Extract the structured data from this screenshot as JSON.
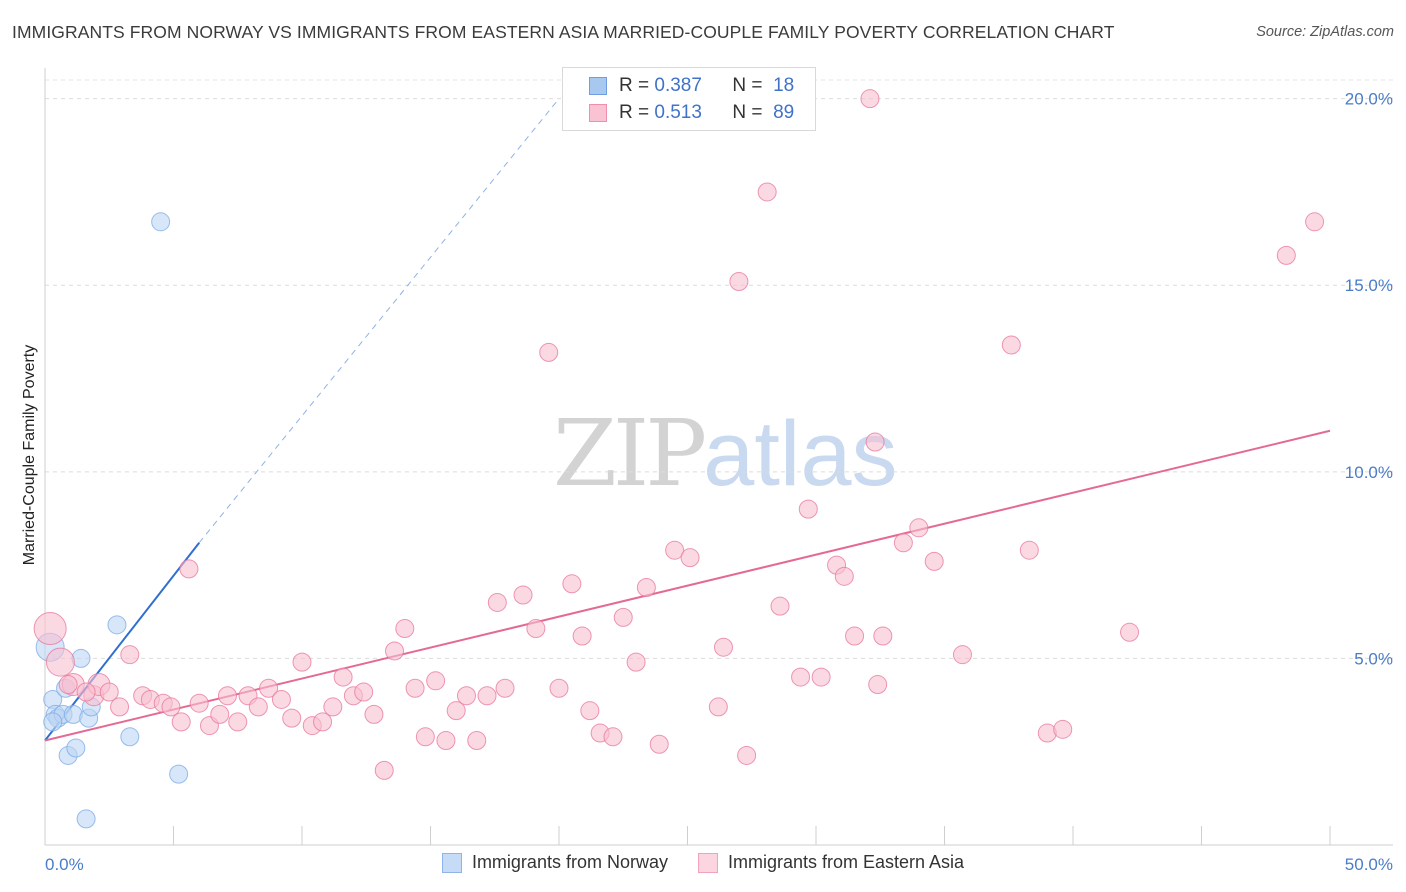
{
  "header": {
    "title": "IMMIGRANTS FROM NORWAY VS IMMIGRANTS FROM EASTERN ASIA MARRIED-COUPLE FAMILY POVERTY CORRELATION CHART",
    "source": "Source: ZipAtlas.com"
  },
  "watermark": {
    "zip": "ZIP",
    "atlas": "atlas"
  },
  "legend_top": [
    {
      "r_label": "R =",
      "r_value": "0.387",
      "n_label": "N =",
      "n_value": "18",
      "color": "#a9c8f0",
      "border": "#6f9fe0"
    },
    {
      "r_label": "R =",
      "r_value": "0.513",
      "n_label": "N =",
      "n_value": "89",
      "color": "#f9c3d3",
      "border": "#ee8fac"
    }
  ],
  "legend_bottom": [
    {
      "label": "Immigrants from Norway",
      "color": "#c6dbf5",
      "border": "#8fb5e6"
    },
    {
      "label": "Immigrants from Eastern Asia",
      "color": "#fbd5e0",
      "border": "#f0a3ba"
    }
  ],
  "chart_data": {
    "type": "scatter",
    "title": "IMMIGRANTS FROM NORWAY VS IMMIGRANTS FROM EASTERN ASIA MARRIED-COUPLE FAMILY POVERTY CORRELATION CHART",
    "xlabel": "",
    "ylabel": "Married-Couple Family Poverty",
    "xlim": [
      0,
      50
    ],
    "ylim": [
      0,
      20.5
    ],
    "x_tick_labels": [
      "0.0%",
      "50.0%"
    ],
    "y_ticks": [
      5,
      10,
      15,
      20
    ],
    "y_tick_labels": [
      "5.0%",
      "10.0%",
      "15.0%",
      "20.0%"
    ],
    "grid": true,
    "legend_position": "top-center",
    "series": [
      {
        "name": "Immigrants from Norway",
        "color": "#7aaae6",
        "fill": "#bcd5f3",
        "R": 0.387,
        "N": 18,
        "trend": {
          "x": [
            0,
            6
          ],
          "y": [
            2.8,
            8.1
          ],
          "extended_to": [
            20,
            20.0
          ]
        },
        "points": [
          [
            0.2,
            5.3,
            14
          ],
          [
            0.3,
            3.9,
            9
          ],
          [
            0.4,
            3.5,
            9
          ],
          [
            0.5,
            3.4,
            9
          ],
          [
            0.7,
            3.5,
            9
          ],
          [
            0.8,
            4.2,
            9
          ],
          [
            0.9,
            2.4,
            9
          ],
          [
            1.1,
            3.5,
            9
          ],
          [
            1.2,
            2.6,
            9
          ],
          [
            1.4,
            5.0,
            9
          ],
          [
            1.6,
            0.7,
            9
          ],
          [
            1.7,
            3.4,
            9
          ],
          [
            1.8,
            3.7,
            9
          ],
          [
            2.8,
            5.9,
            9
          ],
          [
            3.3,
            2.9,
            9
          ],
          [
            4.5,
            16.7,
            9
          ],
          [
            5.2,
            1.9,
            9
          ],
          [
            0.3,
            3.3,
            9
          ]
        ]
      },
      {
        "name": "Immigrants from Eastern Asia",
        "color": "#e8759b",
        "fill": "#f8c0d1",
        "R": 0.513,
        "N": 89,
        "trend": {
          "x": [
            0,
            50
          ],
          "y": [
            2.8,
            11.1
          ]
        },
        "points": [
          [
            0.2,
            5.8,
            16
          ],
          [
            0.6,
            4.9,
            14
          ],
          [
            1.1,
            4.3,
            11
          ],
          [
            1.9,
            4.0,
            10
          ],
          [
            2.1,
            4.3,
            11
          ],
          [
            2.5,
            4.1,
            9
          ],
          [
            2.9,
            3.7,
            9
          ],
          [
            3.3,
            5.1,
            9
          ],
          [
            3.8,
            4.0,
            9
          ],
          [
            4.1,
            3.9,
            9
          ],
          [
            4.6,
            3.8,
            9
          ],
          [
            4.9,
            3.7,
            9
          ],
          [
            5.3,
            3.3,
            9
          ],
          [
            5.6,
            7.4,
            9
          ],
          [
            6.0,
            3.8,
            9
          ],
          [
            6.4,
            3.2,
            9
          ],
          [
            6.8,
            3.5,
            9
          ],
          [
            7.1,
            4.0,
            9
          ],
          [
            7.5,
            3.3,
            9
          ],
          [
            7.9,
            4.0,
            9
          ],
          [
            8.3,
            3.7,
            9
          ],
          [
            8.7,
            4.2,
            9
          ],
          [
            9.2,
            3.9,
            9
          ],
          [
            9.6,
            3.4,
            9
          ],
          [
            10.0,
            4.9,
            9
          ],
          [
            10.4,
            3.2,
            9
          ],
          [
            10.8,
            3.3,
            9
          ],
          [
            11.2,
            3.7,
            9
          ],
          [
            11.6,
            4.5,
            9
          ],
          [
            12.0,
            4.0,
            9
          ],
          [
            12.4,
            4.1,
            9
          ],
          [
            12.8,
            3.5,
            9
          ],
          [
            13.2,
            2.0,
            9
          ],
          [
            13.6,
            5.2,
            9
          ],
          [
            14.0,
            5.8,
            9
          ],
          [
            14.4,
            4.2,
            9
          ],
          [
            14.8,
            2.9,
            9
          ],
          [
            15.2,
            4.4,
            9
          ],
          [
            15.6,
            2.8,
            9
          ],
          [
            16.0,
            3.6,
            9
          ],
          [
            16.4,
            4.0,
            9
          ],
          [
            16.8,
            2.8,
            9
          ],
          [
            17.2,
            4.0,
            9
          ],
          [
            17.6,
            6.5,
            9
          ],
          [
            17.9,
            4.2,
            9
          ],
          [
            18.6,
            6.7,
            9
          ],
          [
            19.1,
            5.8,
            9
          ],
          [
            19.6,
            13.2,
            9
          ],
          [
            20.0,
            4.2,
            9
          ],
          [
            20.5,
            7.0,
            9
          ],
          [
            20.9,
            5.6,
            9
          ],
          [
            21.2,
            3.6,
            9
          ],
          [
            21.6,
            3.0,
            9
          ],
          [
            22.1,
            2.9,
            9
          ],
          [
            22.5,
            6.1,
            9
          ],
          [
            23.0,
            4.9,
            9
          ],
          [
            23.4,
            6.9,
            9
          ],
          [
            23.9,
            2.7,
            9
          ],
          [
            24.5,
            7.9,
            9
          ],
          [
            25.1,
            7.7,
            9
          ],
          [
            26.2,
            3.7,
            9
          ],
          [
            26.4,
            5.3,
            9
          ],
          [
            27.0,
            15.1,
            9
          ],
          [
            27.3,
            2.4,
            9
          ],
          [
            28.1,
            17.5,
            9
          ],
          [
            28.6,
            6.4,
            9
          ],
          [
            29.4,
            4.5,
            9
          ],
          [
            29.7,
            9.0,
            9
          ],
          [
            30.2,
            4.5,
            9
          ],
          [
            30.8,
            7.5,
            9
          ],
          [
            31.1,
            7.2,
            9
          ],
          [
            31.5,
            5.6,
            9
          ],
          [
            32.4,
            4.3,
            9
          ],
          [
            32.6,
            5.6,
            9
          ],
          [
            33.4,
            8.1,
            9
          ],
          [
            32.1,
            20.0,
            9
          ],
          [
            32.3,
            10.8,
            9
          ],
          [
            34.0,
            8.5,
            9
          ],
          [
            34.6,
            7.6,
            9
          ],
          [
            35.7,
            5.1,
            9
          ],
          [
            37.6,
            13.4,
            9
          ],
          [
            38.3,
            7.9,
            9
          ],
          [
            39.0,
            3.0,
            9
          ],
          [
            39.6,
            3.1,
            9
          ],
          [
            42.2,
            5.7,
            9
          ],
          [
            48.3,
            15.8,
            9
          ],
          [
            49.4,
            16.7,
            9
          ],
          [
            0.9,
            4.3,
            9
          ],
          [
            1.6,
            4.1,
            9
          ]
        ]
      }
    ]
  }
}
